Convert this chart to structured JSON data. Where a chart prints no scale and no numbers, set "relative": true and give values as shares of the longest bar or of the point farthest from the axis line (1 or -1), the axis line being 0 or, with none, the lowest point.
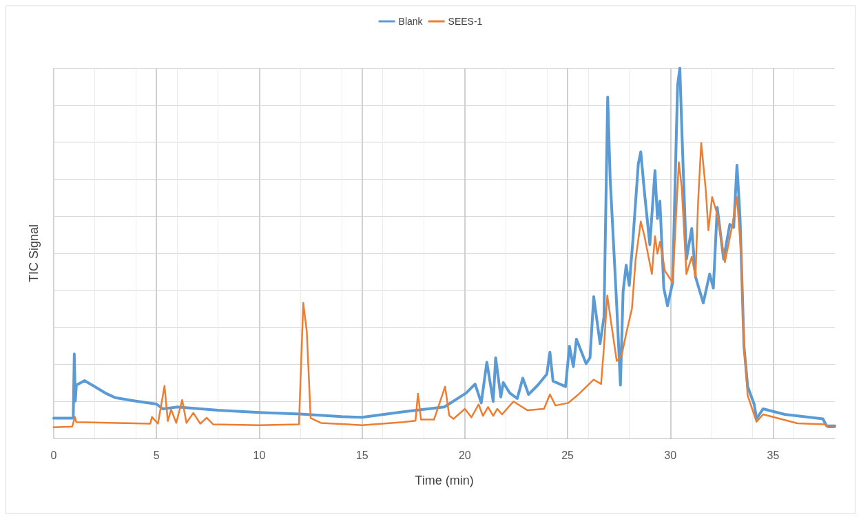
{
  "chart_data": {
    "type": "line",
    "relative": true,
    "xlabel": "Time (min)",
    "ylabel": "TIC Signal",
    "xlim": [
      0,
      38
    ],
    "xticks": [
      0,
      5,
      10,
      15,
      20,
      25,
      30,
      35
    ],
    "grid": true,
    "legend": "top",
    "marker": "none",
    "line_style": "solid",
    "series": [
      {
        "name": "Blank",
        "color": "#5b9bd5",
        "x": [
          0,
          0.95,
          1.0,
          1.05,
          1.1,
          1.5,
          2,
          2.5,
          3,
          4,
          5,
          5.3,
          6,
          8,
          10,
          12,
          14,
          15,
          17,
          19,
          20.07,
          20.5,
          20.8,
          21.07,
          21.38,
          21.5,
          21.75,
          21.87,
          22.18,
          22.55,
          22.82,
          23.1,
          23.55,
          23.99,
          24.14,
          24.29,
          24.9,
          25.09,
          25.28,
          25.43,
          25.9,
          26.09,
          26.27,
          26.58,
          26.77,
          26.95,
          27.07,
          27.39,
          27.57,
          27.7,
          27.85,
          28.0,
          28.17,
          28.44,
          28.56,
          28.74,
          29.0,
          29.25,
          29.37,
          29.49,
          29.68,
          29.86,
          30.11,
          30.35,
          30.46,
          30.58,
          30.78,
          31.04,
          31.22,
          31.6,
          31.91,
          32.09,
          32.28,
          32.59,
          32.89,
          33.08,
          33.24,
          33.39,
          33.58,
          33.76,
          34.08,
          34.19,
          34.51,
          35.56,
          37.42,
          37.6,
          38
        ],
        "values": [
          0.055,
          0.055,
          0.228,
          0.101,
          0.144,
          0.156,
          0.14,
          0.123,
          0.11,
          0.101,
          0.093,
          0.08,
          0.085,
          0.076,
          0.07,
          0.066,
          0.059,
          0.057,
          0.072,
          0.085,
          0.123,
          0.147,
          0.096,
          0.206,
          0.1,
          0.218,
          0.112,
          0.151,
          0.123,
          0.108,
          0.163,
          0.119,
          0.144,
          0.174,
          0.233,
          0.155,
          0.14,
          0.249,
          0.194,
          0.268,
          0.202,
          0.218,
          0.383,
          0.256,
          0.328,
          0.922,
          0.703,
          0.358,
          0.144,
          0.397,
          0.468,
          0.413,
          0.531,
          0.742,
          0.774,
          0.664,
          0.523,
          0.723,
          0.594,
          0.641,
          0.406,
          0.358,
          0.421,
          0.953,
          1.0,
          0.797,
          0.484,
          0.567,
          0.437,
          0.366,
          0.444,
          0.406,
          0.624,
          0.484,
          0.578,
          0.57,
          0.738,
          0.594,
          0.249,
          0.14,
          0.092,
          0.053,
          0.08,
          0.065,
          0.053,
          0.034,
          0.034
        ]
      },
      {
        "name": "SEES-1",
        "color": "#ed7d31",
        "x": [
          0,
          0.9,
          1.03,
          1.1,
          4.7,
          4.78,
          5.07,
          5.39,
          5.55,
          5.71,
          5.96,
          6.25,
          6.46,
          6.79,
          7.13,
          7.44,
          7.76,
          10,
          11.93,
          12.14,
          12.31,
          12.5,
          13,
          15,
          17,
          17.6,
          17.72,
          17.87,
          18.5,
          19.04,
          19.24,
          19.45,
          20.0,
          20.32,
          20.67,
          20.88,
          21.13,
          21.38,
          21.58,
          21.81,
          22.37,
          23.05,
          23.85,
          24.14,
          24.41,
          25.03,
          25.53,
          26.27,
          26.63,
          26.77,
          26.93,
          27.14,
          27.39,
          27.63,
          27.87,
          28.13,
          28.31,
          28.56,
          28.74,
          29.1,
          29.25,
          29.37,
          29.49,
          29.74,
          30.11,
          30.41,
          30.55,
          30.78,
          31.04,
          31.22,
          31.35,
          31.5,
          31.72,
          31.85,
          32.03,
          32.28,
          32.65,
          33.02,
          33.24,
          33.46,
          33.58,
          33.76,
          34.19,
          34.51,
          36.18,
          37.54,
          37.67,
          38
        ],
        "values": [
          0.03,
          0.032,
          0.058,
          0.044,
          0.04,
          0.058,
          0.04,
          0.142,
          0.047,
          0.078,
          0.042,
          0.104,
          0.042,
          0.069,
          0.04,
          0.056,
          0.038,
          0.036,
          0.038,
          0.366,
          0.29,
          0.055,
          0.042,
          0.036,
          0.044,
          0.048,
          0.121,
          0.051,
          0.051,
          0.14,
          0.062,
          0.053,
          0.08,
          0.057,
          0.092,
          0.061,
          0.085,
          0.061,
          0.08,
          0.065,
          0.1,
          0.076,
          0.08,
          0.119,
          0.089,
          0.096,
          0.119,
          0.159,
          0.147,
          0.249,
          0.386,
          0.304,
          0.209,
          0.225,
          0.288,
          0.351,
          0.484,
          0.586,
          0.546,
          0.444,
          0.546,
          0.499,
          0.531,
          0.452,
          0.421,
          0.746,
          0.679,
          0.444,
          0.491,
          0.437,
          0.641,
          0.798,
          0.672,
          0.562,
          0.652,
          0.605,
          0.476,
          0.578,
          0.652,
          0.484,
          0.249,
          0.116,
          0.045,
          0.065,
          0.041,
          0.038,
          0.03,
          0.03
        ]
      }
    ]
  }
}
